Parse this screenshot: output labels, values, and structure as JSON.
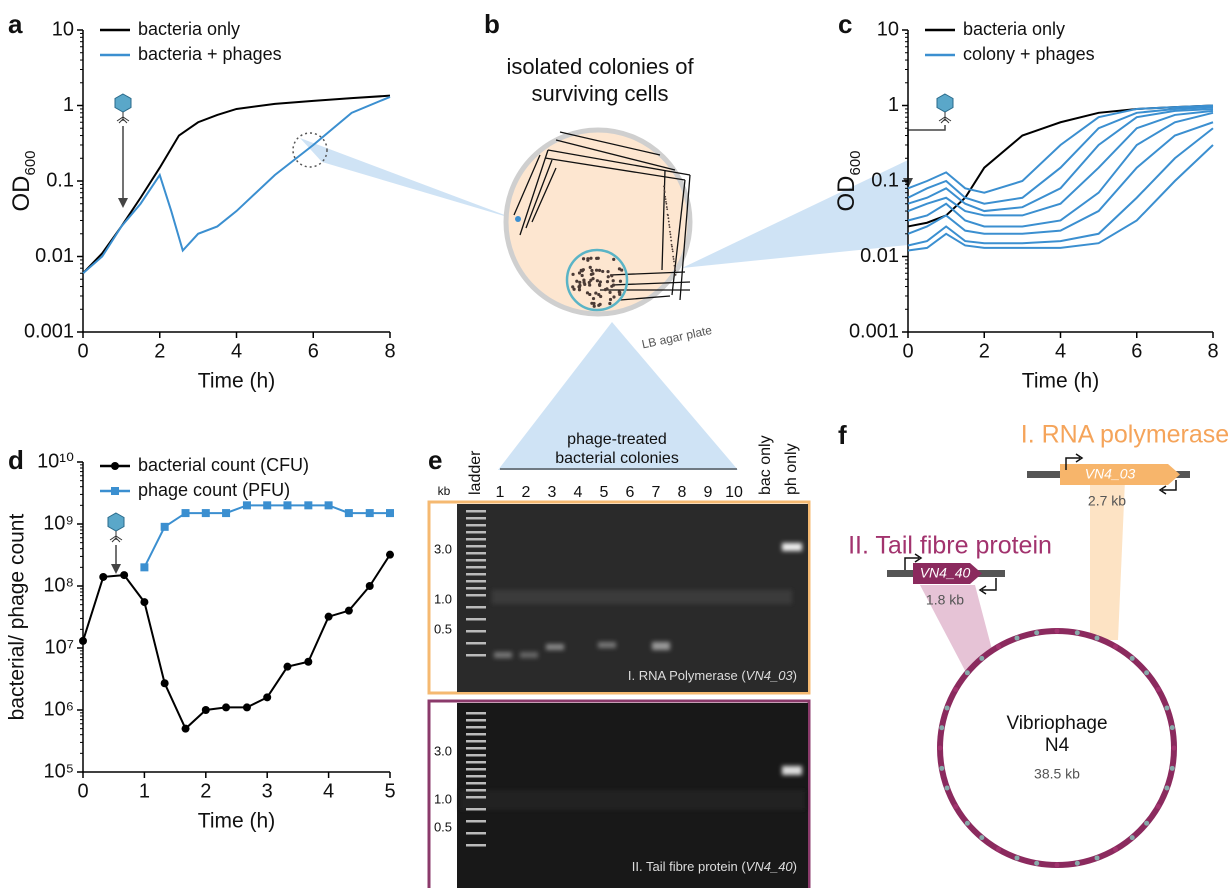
{
  "panel_labels": [
    "a",
    "b",
    "c",
    "d",
    "e",
    "f"
  ],
  "chart_data": [
    {
      "type": "line",
      "log_y": true,
      "x_label": "Time (h)",
      "y_label": {
        "text": "OD",
        "sub": "600"
      },
      "xlim": [
        0,
        8
      ],
      "xticks": [
        0,
        2,
        4,
        6,
        8
      ],
      "ylim": [
        0.001,
        10
      ],
      "yticks": [
        0.001,
        0.01,
        0.1,
        1,
        10
      ],
      "series": [
        {
          "name": "bacteria only",
          "color": "#000000",
          "x": [
            0,
            0.5,
            1,
            1.5,
            2,
            2.5,
            3,
            3.5,
            4,
            5,
            6,
            7,
            8
          ],
          "values": [
            0.006,
            0.011,
            0.025,
            0.06,
            0.15,
            0.4,
            0.6,
            0.75,
            0.9,
            1.05,
            1.15,
            1.25,
            1.35
          ]
        },
        {
          "name": "bacteria + phages",
          "color": "#3b8fd0",
          "x": [
            0,
            0.5,
            1,
            1.5,
            2,
            2.3,
            2.6,
            3,
            3.5,
            4,
            5,
            6,
            7,
            8
          ],
          "values": [
            0.006,
            0.01,
            0.025,
            0.05,
            0.12,
            0.04,
            0.012,
            0.02,
            0.025,
            0.04,
            0.12,
            0.3,
            0.8,
            1.3
          ]
        }
      ]
    },
    {
      "type": "line",
      "log_y": true,
      "x_label": "Time (h)",
      "y_label": {
        "text": "OD",
        "sub": "600"
      },
      "xlim": [
        0,
        8
      ],
      "xticks": [
        0,
        2,
        4,
        6,
        8
      ],
      "ylim": [
        0.001,
        10
      ],
      "yticks": [
        0.001,
        0.01,
        0.1,
        1,
        10
      ],
      "series": [
        {
          "name": "bacteria only",
          "color": "#000000",
          "x": [
            0,
            0.5,
            1,
            1.5,
            2,
            3,
            4,
            5,
            6,
            7,
            8
          ],
          "values": [
            0.025,
            0.028,
            0.035,
            0.06,
            0.15,
            0.4,
            0.6,
            0.8,
            0.9,
            0.95,
            1.0
          ]
        },
        {
          "name": "colony + phages",
          "color": "#3b8fd0",
          "x": [
            0,
            0.5,
            1,
            1.5,
            2,
            3,
            4,
            5,
            6,
            7,
            8
          ],
          "curves": [
            [
              0.08,
              0.1,
              0.13,
              0.08,
              0.07,
              0.1,
              0.3,
              0.7,
              0.9,
              0.95,
              1
            ],
            [
              0.06,
              0.08,
              0.1,
              0.06,
              0.05,
              0.06,
              0.15,
              0.5,
              0.8,
              0.9,
              0.95
            ],
            [
              0.05,
              0.06,
              0.08,
              0.05,
              0.04,
              0.045,
              0.08,
              0.3,
              0.7,
              0.85,
              0.9
            ],
            [
              0.04,
              0.05,
              0.06,
              0.04,
              0.035,
              0.035,
              0.05,
              0.15,
              0.5,
              0.75,
              0.85
            ],
            [
              0.03,
              0.035,
              0.05,
              0.03,
              0.025,
              0.025,
              0.03,
              0.07,
              0.3,
              0.6,
              0.8
            ],
            [
              0.02,
              0.025,
              0.035,
              0.022,
              0.02,
              0.02,
              0.022,
              0.04,
              0.15,
              0.4,
              0.6
            ],
            [
              0.014,
              0.016,
              0.025,
              0.016,
              0.015,
              0.015,
              0.016,
              0.02,
              0.06,
              0.2,
              0.5
            ],
            [
              0.012,
              0.013,
              0.02,
              0.014,
              0.013,
              0.013,
              0.013,
              0.015,
              0.03,
              0.1,
              0.3
            ]
          ]
        }
      ]
    },
    {
      "type": "line",
      "log_y": true,
      "x_label": "Time (h)",
      "y_label": "bacterial/ phage count",
      "xlim": [
        0,
        5
      ],
      "xticks": [
        0,
        1,
        2,
        3,
        4,
        5
      ],
      "ylim": [
        100000,
        10000000000
      ],
      "yticks": [
        {
          "value": 100000,
          "label": "10⁵"
        },
        {
          "value": 1000000,
          "label": "10⁶"
        },
        {
          "value": 10000000,
          "label": "10⁷"
        },
        {
          "value": 100000000,
          "label": "10⁸"
        },
        {
          "value": 1000000000,
          "label": "10⁹"
        },
        {
          "value": 10000000000,
          "label": "10¹⁰"
        }
      ],
      "series": [
        {
          "name": "bacterial count (CFU)",
          "color": "#000000",
          "marker": "circle",
          "x": [
            0,
            0.33,
            0.67,
            1,
            1.33,
            1.67,
            2,
            2.33,
            2.67,
            3,
            3.33,
            3.67,
            4,
            4.33,
            4.67,
            5
          ],
          "values": [
            13000000,
            140000000,
            150000000,
            55000000,
            2700000,
            500000,
            1000000,
            1100000,
            1100000,
            1600000,
            5000000,
            6000000,
            32000000,
            40000000,
            100000000,
            320000000
          ]
        },
        {
          "name": "phage count (PFU)",
          "color": "#3b8fd0",
          "marker": "square",
          "x": [
            1,
            1.33,
            1.67,
            2,
            2.33,
            2.67,
            3,
            3.33,
            3.67,
            4,
            4.33,
            4.67,
            5
          ],
          "values": [
            200000000,
            900000000,
            1500000000,
            1500000000,
            1500000000,
            2000000000,
            2000000000,
            2000000000,
            2000000000,
            2000000000,
            1500000000,
            1500000000,
            1500000000
          ]
        }
      ]
    }
  ],
  "panel_b": {
    "title": [
      "isolated colonies of",
      "surviving cells"
    ],
    "plate": "LB agar plate"
  },
  "panel_e": {
    "header": [
      "phage-treated",
      "bacterial colonies"
    ],
    "ladder": "ladder",
    "kb": "kb",
    "lanes": [
      "1",
      "2",
      "3",
      "4",
      "5",
      "6",
      "7",
      "8",
      "9",
      "10"
    ],
    "bac_only": "bac only",
    "ph_only": "ph only",
    "gels": [
      {
        "sizes": [
          "3.0",
          "1.0",
          "0.5"
        ],
        "caption": "I. RNA Polymerase (",
        "gene": "VN4_03",
        "close": ")"
      },
      {
        "sizes": [
          "3.0",
          "1.0",
          "0.5"
        ],
        "caption": "II. Tail fibre protein (",
        "gene": "VN4_40",
        "close": ")"
      }
    ]
  },
  "panel_f": {
    "gene1": {
      "title": "I. RNA polymerase",
      "name": "VN4_03",
      "size": "2.7 kb"
    },
    "gene2": {
      "title": "II. Tail fibre protein",
      "name": "VN4_40",
      "size": "1.8 kb"
    },
    "genome": {
      "name": [
        "Vibriophage",
        "N4"
      ],
      "size": "38.5 kb"
    }
  }
}
